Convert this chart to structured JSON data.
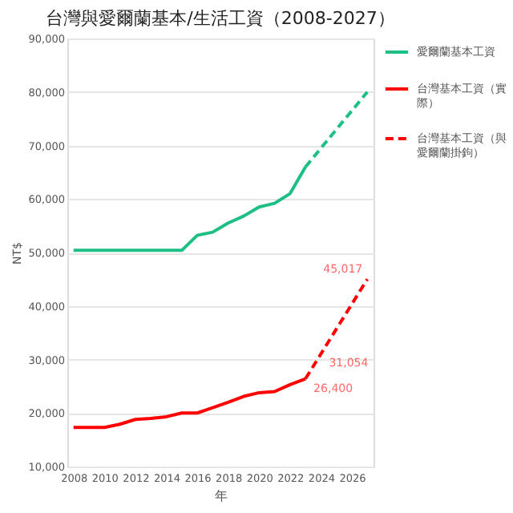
{
  "chart_data": {
    "type": "line",
    "title": "台灣與愛爾蘭基本/生活工資（2008-2027）",
    "xlabel": "年",
    "ylabel": "NT$",
    "xlim": [
      2007.6,
      2027.4
    ],
    "xticks": [
      2008,
      2010,
      2012,
      2014,
      2016,
      2018,
      2020,
      2022,
      2024,
      2026
    ],
    "ylim": [
      10000,
      90000
    ],
    "yticks": [
      {
        "value": 10000,
        "label": "10,000"
      },
      {
        "value": 20000,
        "label": "20,000"
      },
      {
        "value": 30000,
        "label": "30,000"
      },
      {
        "value": 40000,
        "label": "40,000"
      },
      {
        "value": 50000,
        "label": "50,000"
      },
      {
        "value": 60000,
        "label": "60,000"
      },
      {
        "value": 70000,
        "label": "70,000"
      },
      {
        "value": 80000,
        "label": "80,000"
      },
      {
        "value": 90000,
        "label": "90,000"
      }
    ],
    "grid": "y",
    "legend": "right",
    "marker": "none",
    "series": [
      {
        "name": "愛爾蘭基本工資",
        "color": "#1dbf84",
        "line_style": "solid",
        "x": [
          2008,
          2009,
          2010,
          2011,
          2012,
          2013,
          2014,
          2015,
          2016,
          2017,
          2018,
          2019,
          2020,
          2021,
          2022,
          2023
        ],
        "values": [
          50400,
          50400,
          50400,
          50400,
          50400,
          50400,
          50400,
          50400,
          53200,
          53800,
          55500,
          56800,
          58500,
          59200,
          61000,
          66000
        ]
      },
      {
        "color": "#1dbf84",
        "line_style": "dashed",
        "x": [
          2023,
          2027
        ],
        "values": [
          66000,
          80000
        ]
      },
      {
        "name": "台灣基本工資（實際）",
        "color": "#ff0000",
        "line_style": "solid",
        "x": [
          2008,
          2009,
          2010,
          2011,
          2012,
          2013,
          2014,
          2015,
          2016,
          2017,
          2018,
          2019,
          2020,
          2021,
          2022,
          2023
        ],
        "values": [
          17300,
          17300,
          17300,
          17900,
          18800,
          19000,
          19300,
          20000,
          20000,
          21000,
          22000,
          23100,
          23800,
          24000,
          25300,
          26400
        ]
      },
      {
        "name": "台灣基本工資（與愛爾蘭掛鉤）",
        "color": "#ff0000",
        "line_style": "dashed",
        "x": [
          2023,
          2024,
          2027
        ],
        "values": [
          26400,
          31054,
          45017
        ],
        "value_labels": [
          "26,400",
          "31,054",
          "45,017"
        ]
      }
    ]
  }
}
